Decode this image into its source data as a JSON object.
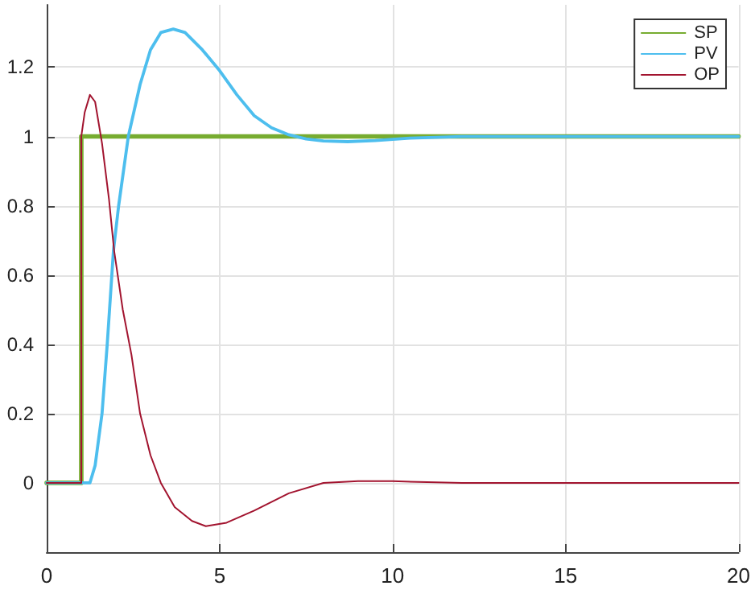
{
  "chart_data": {
    "type": "line",
    "xlim": [
      0,
      20
    ],
    "ylim": [
      -0.2,
      1.38
    ],
    "xticks": [
      0,
      5,
      10,
      15,
      20
    ],
    "yticks": [
      0,
      0.2,
      0.4,
      0.6,
      0.8,
      1,
      1.2
    ],
    "grid": true,
    "legend": "top right",
    "marker": "none",
    "line_style": "solid",
    "series": [
      {
        "name": "SP",
        "color": "#77ac30",
        "x": [
          0,
          1,
          1,
          20
        ],
        "values": [
          0,
          0,
          1,
          1
        ]
      },
      {
        "name": "PV",
        "color": "#4dbeee",
        "x": [
          0,
          1.25,
          1.4,
          1.6,
          1.75,
          1.93,
          2.08,
          2.36,
          2.7,
          3.0,
          3.3,
          3.66,
          4.0,
          4.5,
          5.0,
          5.5,
          6.0,
          6.5,
          7.0,
          7.5,
          8.0,
          8.7,
          9.5,
          10.5,
          12,
          20
        ],
        "values": [
          0,
          0,
          0.05,
          0.2,
          0.4,
          0.67,
          0.8,
          1.0,
          1.15,
          1.25,
          1.3,
          1.31,
          1.3,
          1.25,
          1.19,
          1.12,
          1.06,
          1.025,
          1.005,
          0.993,
          0.987,
          0.985,
          0.988,
          0.995,
          1.0,
          1.0
        ]
      },
      {
        "name": "OP",
        "color": "#a2142f",
        "x": [
          0,
          1,
          1,
          1.1,
          1.25,
          1.4,
          1.6,
          1.8,
          1.95,
          2.2,
          2.45,
          2.7,
          3.0,
          3.3,
          3.7,
          4.2,
          4.6,
          5.2,
          6.0,
          7.0,
          8.0,
          9.0,
          10,
          11,
          12,
          20
        ],
        "values": [
          0,
          0,
          1.0,
          1.07,
          1.12,
          1.1,
          0.98,
          0.82,
          0.67,
          0.5,
          0.37,
          0.2,
          0.08,
          0,
          -0.07,
          -0.11,
          -0.125,
          -0.115,
          -0.08,
          -0.03,
          0,
          0.005,
          0.005,
          0.002,
          0,
          0
        ]
      }
    ]
  }
}
